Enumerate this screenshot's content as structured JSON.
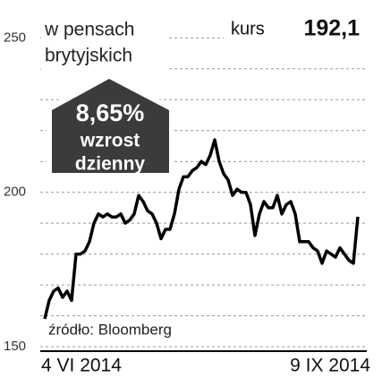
{
  "chart_data": {
    "type": "line",
    "subtitle_lines": [
      "w pensach",
      "brytyjskich"
    ],
    "current_label": "kurs",
    "current_value": {
      "value": 192.1,
      "label": "192,1"
    },
    "change": {
      "value": 8.65,
      "label": "8,65%"
    },
    "change_lines": [
      "wzrost",
      "dzienny"
    ],
    "source": "źródło: Bloomberg",
    "color": "#000000",
    "grid": true,
    "ylim": [
      150,
      253
    ],
    "yticks": [
      150,
      200,
      250
    ],
    "yminor": [
      160,
      170,
      180,
      190,
      210,
      220,
      230,
      240
    ],
    "xticks": [
      {
        "value": 0,
        "label": "4 VI 2014"
      },
      {
        "value": 72,
        "label": "9 IX 2014"
      }
    ],
    "values": [
      159,
      165,
      168,
      169,
      166,
      168,
      165,
      180,
      180,
      181,
      184,
      190,
      193,
      192,
      193,
      192,
      192,
      193,
      190,
      191,
      193,
      199,
      197,
      194,
      193,
      190,
      185,
      188,
      188,
      193,
      201,
      205,
      205,
      207,
      208,
      210,
      209,
      212,
      217,
      210,
      206,
      204,
      199,
      201,
      200,
      200,
      196,
      186,
      193,
      197,
      195,
      195,
      199,
      193,
      196,
      197,
      193,
      184,
      184,
      184,
      182,
      181,
      177,
      181,
      180,
      179,
      182,
      180,
      178,
      177,
      192.1
    ]
  }
}
